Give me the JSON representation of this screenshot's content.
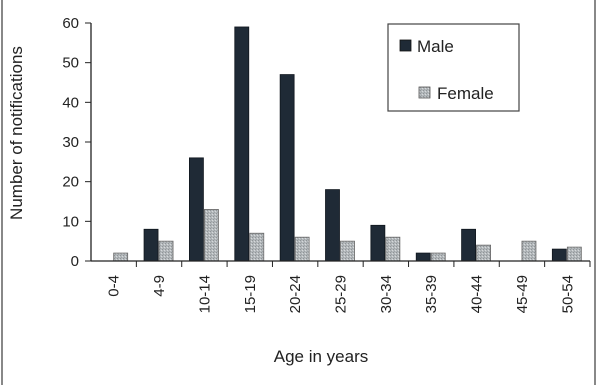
{
  "chart_data": {
    "type": "bar",
    "xlabel": "Age in years",
    "ylabel": "Number of notifications",
    "ylim": [
      0,
      60
    ],
    "yticks": [
      "0",
      "10",
      "20",
      "30",
      "40",
      "50",
      "60"
    ],
    "categories": [
      "0-4",
      "4-9",
      "10-14",
      "15-19",
      "20-24",
      "25-29",
      "30-34",
      "35-39",
      "40-44",
      "45-49",
      "50-54"
    ],
    "series": [
      {
        "name": "Male",
        "color": "#1f2a36",
        "values": [
          0,
          8,
          26,
          59,
          47,
          18,
          9,
          2,
          8,
          0,
          3
        ]
      },
      {
        "name": "Female",
        "color": "#b3b8bb",
        "values": [
          2,
          5,
          13,
          7,
          6,
          5,
          6,
          2,
          4,
          5,
          3.5
        ]
      }
    ],
    "legend_position": "top-right",
    "grid": false
  }
}
